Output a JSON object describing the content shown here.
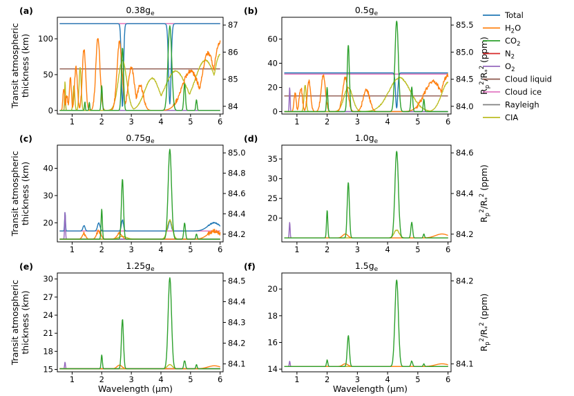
{
  "figure": {
    "legend": [
      {
        "name": "Total",
        "color": "#1f77b4"
      },
      {
        "name": "H2O",
        "label": "H",
        "sub": "2",
        "tail": "O",
        "color": "#ff7f0e"
      },
      {
        "name": "CO2",
        "label": "CO",
        "sub": "2",
        "tail": "",
        "color": "#2ca02c"
      },
      {
        "name": "N2",
        "label": "N",
        "sub": "2",
        "tail": "",
        "color": "#d62728"
      },
      {
        "name": "O2",
        "label": "O",
        "sub": "2",
        "tail": "",
        "color": "#9467bd"
      },
      {
        "name": "Cloud liquid",
        "color": "#8c564b"
      },
      {
        "name": "Cloud ice",
        "color": "#e377c2"
      },
      {
        "name": "Rayleigh",
        "color": "#7f7f7f"
      },
      {
        "name": "CIA",
        "color": "#bcbd22"
      }
    ],
    "ylabel_left_1": "Transit atmospheric",
    "ylabel_left_2": "thickness (km)",
    "ylabel_right": "R_p^2/R_*^2 (ppm)",
    "xlabel": "Wavelength (μm)"
  },
  "chart_data": [
    {
      "type": "line",
      "panel": "(a)",
      "title": "0.38g",
      "title_sub": "e",
      "xlabel": "Wavelength (μm)",
      "xlim": [
        0.5,
        6.1
      ],
      "xticks": [
        1,
        2,
        3,
        4,
        5,
        6
      ],
      "ylim": [
        -5,
        130
      ],
      "yticks": [
        0,
        50,
        100
      ],
      "y2ticks": [
        84,
        85,
        86,
        87
      ],
      "baselines": {
        "Total": 121,
        "H2O": 0,
        "CO2": 0,
        "N2": 121,
        "O2": 0,
        "Cloud liquid": 58,
        "Cloud ice": 121,
        "Rayleigh": 0,
        "CIA": 0
      },
      "features": {
        "CO2": [
          [
            1.43,
            12,
            0.02
          ],
          [
            1.58,
            12,
            0.02
          ],
          [
            2.0,
            35,
            0.03
          ],
          [
            2.7,
            88,
            0.05
          ],
          [
            4.3,
            118,
            0.09
          ],
          [
            4.8,
            38,
            0.04
          ],
          [
            5.2,
            15,
            0.03
          ]
        ],
        "Total": [
          [
            2.7,
            5,
            0.05
          ],
          [
            4.3,
            9,
            0.06
          ]
        ],
        "H2O": [
          [
            0.72,
            30,
            0.04
          ],
          [
            0.82,
            20,
            0.05
          ],
          [
            0.94,
            45,
            0.05
          ],
          [
            1.13,
            60,
            0.07
          ],
          [
            1.4,
            85,
            0.08
          ],
          [
            1.87,
            100,
            0.1
          ],
          [
            2.6,
            95,
            0.12
          ],
          [
            3.0,
            60,
            0.15
          ],
          [
            3.3,
            35,
            0.15
          ],
          [
            5.0,
            55,
            0.4
          ],
          [
            5.6,
            80,
            0.3
          ],
          [
            6.0,
            95,
            0.3
          ]
        ],
        "CIA": [
          [
            1.27,
            60,
            0.05
          ],
          [
            1.06,
            35,
            0.04
          ],
          [
            0.76,
            40,
            0.02
          ],
          [
            2.7,
            70,
            0.2
          ],
          [
            3.7,
            45,
            0.35
          ],
          [
            4.5,
            55,
            0.5
          ],
          [
            5.5,
            70,
            0.5
          ],
          [
            6.0,
            78,
            0.3
          ]
        ],
        "O2": [
          [
            0.76,
            30,
            0.02
          ]
        ]
      }
    },
    {
      "type": "line",
      "panel": "(b)",
      "title": "0.5g",
      "title_sub": "e",
      "xlabel": "Wavelength (μm)",
      "xlim": [
        0.5,
        6.1
      ],
      "xticks": [
        1,
        2,
        3,
        4,
        5,
        6
      ],
      "ylim": [
        -2,
        78
      ],
      "yticks": [
        0,
        20,
        40,
        60
      ],
      "y2ticks": [
        84.0,
        84.5,
        85.0,
        85.5
      ],
      "baselines": {
        "Total": 32,
        "H2O": 0,
        "CO2": 0,
        "N2": 31,
        "O2": 0,
        "Cloud liquid": 13,
        "Cloud ice": 31,
        "Rayleigh": 0,
        "CIA": 0
      },
      "features": {
        "CO2": [
          [
            2.0,
            20,
            0.03
          ],
          [
            2.7,
            55,
            0.05
          ],
          [
            4.3,
            75,
            0.08
          ],
          [
            4.8,
            20,
            0.04
          ],
          [
            5.2,
            10,
            0.03
          ]
        ],
        "Total": [
          [
            4.3,
            3,
            0.05
          ]
        ],
        "H2O": [
          [
            0.94,
            15,
            0.05
          ],
          [
            1.13,
            20,
            0.07
          ],
          [
            1.4,
            25,
            0.08
          ],
          [
            1.87,
            30,
            0.1
          ],
          [
            2.6,
            28,
            0.12
          ],
          [
            3.3,
            18,
            0.15
          ],
          [
            5.5,
            25,
            0.4
          ],
          [
            6.0,
            30,
            0.3
          ]
        ],
        "CIA": [
          [
            1.27,
            22,
            0.05
          ],
          [
            2.7,
            20,
            0.2
          ],
          [
            4.4,
            28,
            0.5
          ],
          [
            6.0,
            24,
            0.3
          ]
        ],
        "O2": [
          [
            0.76,
            20,
            0.02
          ]
        ]
      }
    },
    {
      "type": "line",
      "panel": "(c)",
      "title": "0.75g",
      "title_sub": "e",
      "xlabel": "Wavelength (μm)",
      "xlim": [
        0.5,
        6.1
      ],
      "xticks": [
        1,
        2,
        3,
        4,
        5,
        6
      ],
      "ylim": [
        13,
        48.5
      ],
      "yticks": [
        20,
        30,
        40
      ],
      "y2ticks": [
        84.2,
        84.4,
        84.6,
        84.8,
        85.0
      ],
      "baselines": {
        "Total": 17,
        "H2O": 14,
        "CO2": 14,
        "N2": 17,
        "O2": 14,
        "Cloud liquid": 14,
        "Cloud ice": 17,
        "Rayleigh": 14,
        "CIA": 14
      },
      "features": {
        "CO2": [
          [
            2.0,
            25,
            0.03
          ],
          [
            2.7,
            36,
            0.05
          ],
          [
            4.3,
            47,
            0.08
          ],
          [
            4.8,
            20,
            0.04
          ],
          [
            5.2,
            16,
            0.03
          ]
        ],
        "Total": [
          [
            0.76,
            24,
            0.02
          ],
          [
            1.4,
            19,
            0.05
          ],
          [
            1.9,
            20,
            0.06
          ],
          [
            2.7,
            21,
            0.05
          ],
          [
            4.3,
            21,
            0.06
          ],
          [
            5.8,
            20,
            0.3
          ]
        ],
        "H2O": [
          [
            1.4,
            16,
            0.08
          ],
          [
            1.9,
            17,
            0.1
          ],
          [
            2.6,
            16,
            0.12
          ],
          [
            5.8,
            17,
            0.3
          ]
        ],
        "CIA": [
          [
            4.3,
            21,
            0.12
          ],
          [
            2.7,
            15,
            0.2
          ]
        ],
        "O2": [
          [
            0.76,
            24,
            0.02
          ]
        ]
      }
    },
    {
      "type": "line",
      "panel": "(d)",
      "title": "1.0g",
      "title_sub": "e",
      "xlabel": "Wavelength (μm)",
      "xlim": [
        0.5,
        6.1
      ],
      "xticks": [
        1,
        2,
        3,
        4,
        5,
        6
      ],
      "ylim": [
        14,
        38.5
      ],
      "yticks": [
        20,
        25,
        30,
        35
      ],
      "y2ticks": [
        84.2,
        84.4,
        84.6
      ],
      "baselines": {
        "Total": 15,
        "H2O": 15,
        "CO2": 15,
        "N2": 15,
        "O2": 15,
        "Cloud liquid": 15,
        "Cloud ice": 15,
        "Rayleigh": 15,
        "CIA": 15
      },
      "features": {
        "CO2": [
          [
            2.0,
            22,
            0.03
          ],
          [
            2.7,
            29,
            0.05
          ],
          [
            4.3,
            37,
            0.08
          ],
          [
            4.8,
            19,
            0.04
          ],
          [
            5.2,
            16,
            0.03
          ]
        ],
        "H2O": [
          [
            2.6,
            16,
            0.12
          ],
          [
            5.8,
            16,
            0.3
          ]
        ],
        "CIA": [
          [
            4.3,
            17,
            0.12
          ]
        ],
        "O2": [
          [
            0.76,
            19,
            0.02
          ]
        ]
      }
    },
    {
      "type": "line",
      "panel": "(e)",
      "title": "1.25g",
      "title_sub": "e",
      "xlabel": "Wavelength (μm)",
      "xlim": [
        0.5,
        6.1
      ],
      "xticks": [
        1,
        2,
        3,
        4,
        5,
        6
      ],
      "ylim": [
        14.6,
        31
      ],
      "yticks": [
        15,
        18,
        21,
        24,
        27,
        30
      ],
      "y2ticks": [
        84.1,
        84.2,
        84.3,
        84.4,
        84.5
      ],
      "baselines": {
        "Total": 15.1,
        "H2O": 15.1,
        "CO2": 15.1,
        "N2": 15.1,
        "O2": 15.1,
        "Cloud liquid": 15.1,
        "Cloud ice": 15.1,
        "Rayleigh": 15.1,
        "CIA": 15.1
      },
      "features": {
        "CO2": [
          [
            2.0,
            17.3,
            0.03
          ],
          [
            2.7,
            23.3,
            0.05
          ],
          [
            4.3,
            30.3,
            0.08
          ],
          [
            4.8,
            16.5,
            0.04
          ],
          [
            5.2,
            15.8,
            0.03
          ]
        ],
        "H2O": [
          [
            2.6,
            15.7,
            0.12
          ],
          [
            5.8,
            15.6,
            0.3
          ]
        ],
        "CIA": [
          [
            4.3,
            15.8,
            0.12
          ]
        ],
        "O2": [
          [
            0.76,
            16.2,
            0.02
          ]
        ]
      }
    },
    {
      "type": "line",
      "panel": "(f)",
      "title": "1.5g",
      "title_sub": "e",
      "xlabel": "Wavelength (μm)",
      "xlim": [
        0.5,
        6.1
      ],
      "xticks": [
        1,
        2,
        3,
        4,
        5,
        6
      ],
      "ylim": [
        13.8,
        21.2
      ],
      "yticks": [
        14,
        16,
        18,
        20
      ],
      "y2ticks": [
        84.1,
        84.2
      ],
      "baselines": {
        "Total": 14.2,
        "H2O": 14.2,
        "CO2": 14.2,
        "N2": 14.2,
        "O2": 14.2,
        "Cloud liquid": 14.2,
        "Cloud ice": 14.2,
        "Rayleigh": 14.2,
        "CIA": 14.2
      },
      "features": {
        "CO2": [
          [
            2.0,
            14.7,
            0.03
          ],
          [
            2.7,
            16.5,
            0.05
          ],
          [
            4.3,
            20.7,
            0.08
          ],
          [
            4.8,
            14.6,
            0.04
          ],
          [
            5.2,
            14.4,
            0.03
          ]
        ],
        "H2O": [
          [
            2.6,
            14.4,
            0.12
          ],
          [
            5.8,
            14.4,
            0.3
          ]
        ],
        "O2": [
          [
            0.76,
            14.6,
            0.02
          ]
        ]
      }
    }
  ]
}
